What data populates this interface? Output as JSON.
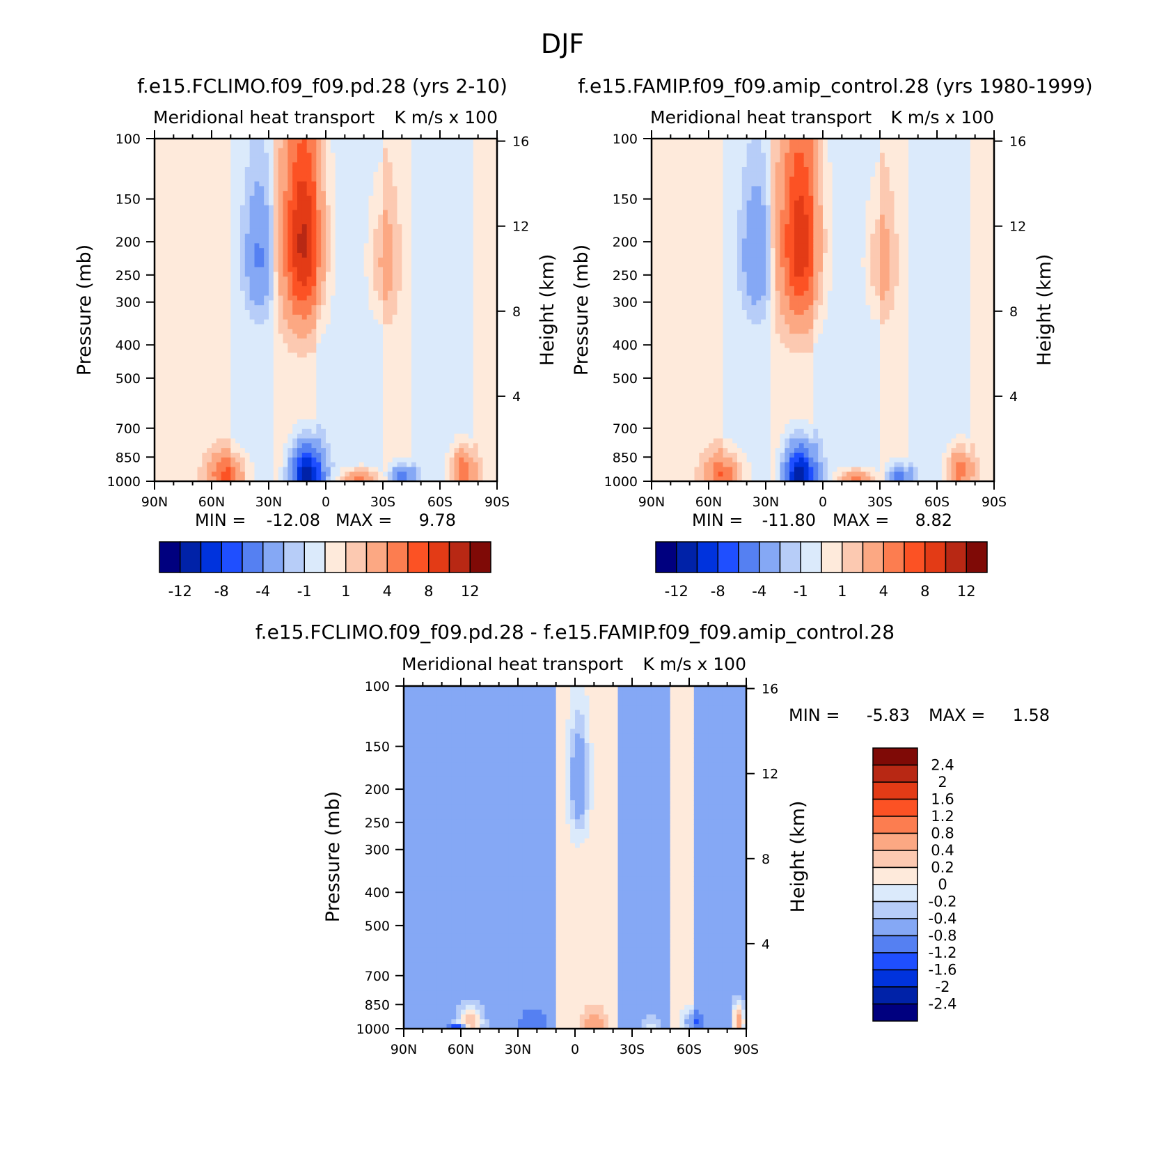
{
  "season": "DJF",
  "units": "K m/s x 100",
  "colors": {
    "background": "#ffffff",
    "frame": "#000000"
  },
  "chart_data": [
    {
      "id": "p1",
      "type": "heatmap",
      "title": "f.e15.FCLIMO.f09_f09.pd.28 (yrs 2-10)",
      "subtitle": "Meridional heat transport",
      "units": "K m/s x 100",
      "xlabel": "",
      "ylabel": "Pressure (mb)",
      "ylabel_right": "Height (km)",
      "x_ticks": [
        "90N",
        "60N",
        "30N",
        "0",
        "30S",
        "60S",
        "90S"
      ],
      "x_range": [
        90,
        -90
      ],
      "y_ticks": [
        100,
        150,
        200,
        250,
        300,
        400,
        500,
        700,
        850,
        1000
      ],
      "y_range": [
        100,
        1000
      ],
      "y_right_ticks": [
        16,
        12,
        8,
        4
      ],
      "min_label": "MIN = ",
      "min": "-12.08",
      "max_label": "MAX = ",
      "max": "9.78",
      "features": [
        {
          "lat": 12,
          "p": 200,
          "value": 9.78,
          "sx": 10,
          "sp": 130
        },
        {
          "lat": 35,
          "p": 220,
          "value": -3.8,
          "sx": 7,
          "sp": 90
        },
        {
          "lat": -30,
          "p": 230,
          "value": 2.6,
          "sx": 7,
          "sp": 90
        },
        {
          "lat": 10,
          "p": 960,
          "value": -12.08,
          "sx": 8,
          "sp": 180
        },
        {
          "lat": 52,
          "p": 960,
          "value": 6.0,
          "sx": 9,
          "sp": 130
        },
        {
          "lat": -18,
          "p": 985,
          "value": 5.0,
          "sx": 9,
          "sp": 60
        },
        {
          "lat": -40,
          "p": 975,
          "value": -5.5,
          "sx": 7,
          "sp": 80
        },
        {
          "lat": -72,
          "p": 930,
          "value": 6.0,
          "sx": 6,
          "sp": 130
        }
      ],
      "regions": [
        {
          "lat_from": 90,
          "lat_to": 50,
          "value": 0.6
        },
        {
          "lat_from": 28,
          "lat_to": 4,
          "value": 0.6
        },
        {
          "lat_from": -30,
          "lat_to": -46,
          "value": 0.6
        },
        {
          "lat_from": -78,
          "lat_to": -90,
          "value": 0.6
        }
      ]
    },
    {
      "id": "p2",
      "type": "heatmap",
      "title": "f.e15.FAMIP.f09_f09.amip_control.28 (yrs 1980-1999)",
      "subtitle": "Meridional heat transport",
      "units": "K m/s x 100",
      "xlabel": "",
      "ylabel": "Pressure (mb)",
      "ylabel_right": "Height (km)",
      "x_ticks": [
        "90N",
        "60N",
        "30N",
        "0",
        "30S",
        "60S",
        "90S"
      ],
      "x_range": [
        90,
        -90
      ],
      "y_ticks": [
        100,
        150,
        200,
        250,
        300,
        400,
        500,
        700,
        850,
        1000
      ],
      "y_range": [
        100,
        1000
      ],
      "y_right_ticks": [
        16,
        12,
        8,
        4
      ],
      "min_label": "MIN = ",
      "min": "-11.80",
      "max_label": "MAX = ",
      "max": "8.82",
      "features": [
        {
          "lat": 12,
          "p": 200,
          "value": 8.82,
          "sx": 10,
          "sp": 130
        },
        {
          "lat": 35,
          "p": 220,
          "value": -3.6,
          "sx": 7,
          "sp": 90
        },
        {
          "lat": -30,
          "p": 230,
          "value": 2.4,
          "sx": 7,
          "sp": 90
        },
        {
          "lat": 12,
          "p": 960,
          "value": -11.8,
          "sx": 8,
          "sp": 180
        },
        {
          "lat": 52,
          "p": 960,
          "value": 5.8,
          "sx": 9,
          "sp": 130
        },
        {
          "lat": -18,
          "p": 985,
          "value": 4.8,
          "sx": 9,
          "sp": 60
        },
        {
          "lat": -40,
          "p": 975,
          "value": -5.2,
          "sx": 7,
          "sp": 80
        },
        {
          "lat": -72,
          "p": 930,
          "value": 5.6,
          "sx": 6,
          "sp": 130
        }
      ],
      "regions": [
        {
          "lat_from": 90,
          "lat_to": 52,
          "value": 0.6
        },
        {
          "lat_from": 28,
          "lat_to": 4,
          "value": 0.6
        },
        {
          "lat_from": -30,
          "lat_to": -46,
          "value": 0.6
        },
        {
          "lat_from": -78,
          "lat_to": -90,
          "value": 0.6
        }
      ]
    },
    {
      "id": "p3",
      "type": "heatmap",
      "title": "f.e15.FCLIMO.f09_f09.pd.28 - f.e15.FAMIP.f09_f09.amip_control.28",
      "subtitle": "Meridional heat transport",
      "units": "K m/s x 100",
      "xlabel": "",
      "ylabel": "Pressure (mb)",
      "ylabel_right": "Height (km)",
      "x_ticks": [
        "90N",
        "60N",
        "30N",
        "0",
        "30S",
        "60S",
        "90S"
      ],
      "x_range": [
        90,
        -90
      ],
      "y_ticks": [
        100,
        150,
        200,
        250,
        300,
        400,
        500,
        700,
        850,
        1000
      ],
      "y_range": [
        100,
        1000
      ],
      "y_right_ticks": [
        16,
        12,
        8,
        4
      ],
      "min_label": "MIN = ",
      "min": "-5.83",
      "max_label": "MAX = ",
      "max": "1.58",
      "features": [
        {
          "lat": -2,
          "p": 190,
          "value": -0.9,
          "sx": 5,
          "sp": 70
        },
        {
          "lat": 55,
          "p": 960,
          "value": 0.9,
          "sx": 6,
          "sp": 100
        },
        {
          "lat": 22,
          "p": 960,
          "value": -0.7,
          "sx": 8,
          "sp": 100
        },
        {
          "lat": -10,
          "p": 960,
          "value": 0.5,
          "sx": 6,
          "sp": 90
        },
        {
          "lat": -40,
          "p": 985,
          "value": 0.4,
          "sx": 5,
          "sp": 60
        },
        {
          "lat": -62,
          "p": 960,
          "value": -0.8,
          "sx": 5,
          "sp": 80
        },
        {
          "lat": -86,
          "p": 950,
          "value": 1.2,
          "sx": 3,
          "sp": 100
        },
        {
          "lat": 62,
          "p": 1000,
          "value": -5.83,
          "sx": 5,
          "sp": 12
        }
      ],
      "regions": [
        {
          "lat_from": 10,
          "lat_to": -22,
          "value": 0.1
        },
        {
          "lat_from": -50,
          "lat_to": -62,
          "value": 0.1
        }
      ]
    }
  ],
  "colorbar_main": {
    "levels": [
      "-12",
      "-8",
      "-4",
      "-1",
      "1",
      "4",
      "8",
      "12"
    ],
    "colors": [
      "#00007f",
      "#0022a8",
      "#0033dd",
      "#1f4fff",
      "#5580f2",
      "#85a8f5",
      "#b7cdf8",
      "#dbeafb",
      "#feeadb",
      "#fcc9b1",
      "#fca883",
      "#fc7d50",
      "#fc5224",
      "#e33b16",
      "#b82814",
      "#7f0a06"
    ]
  },
  "colorbar_diff": {
    "levels": [
      "2.4",
      "2",
      "1.6",
      "1.2",
      "0.8",
      "0.4",
      "0.2",
      "0",
      "-0.2",
      "-0.4",
      "-0.8",
      "-1.2",
      "-1.6",
      "-2",
      "-2.4"
    ],
    "colors": [
      "#7f0a06",
      "#b82814",
      "#e33b16",
      "#fc5224",
      "#fc7d50",
      "#fca883",
      "#fcc9b1",
      "#feeadb",
      "#dbeafb",
      "#b7cdf8",
      "#85a8f5",
      "#5580f2",
      "#1f4fff",
      "#0033dd",
      "#0022a8",
      "#00007f"
    ]
  }
}
